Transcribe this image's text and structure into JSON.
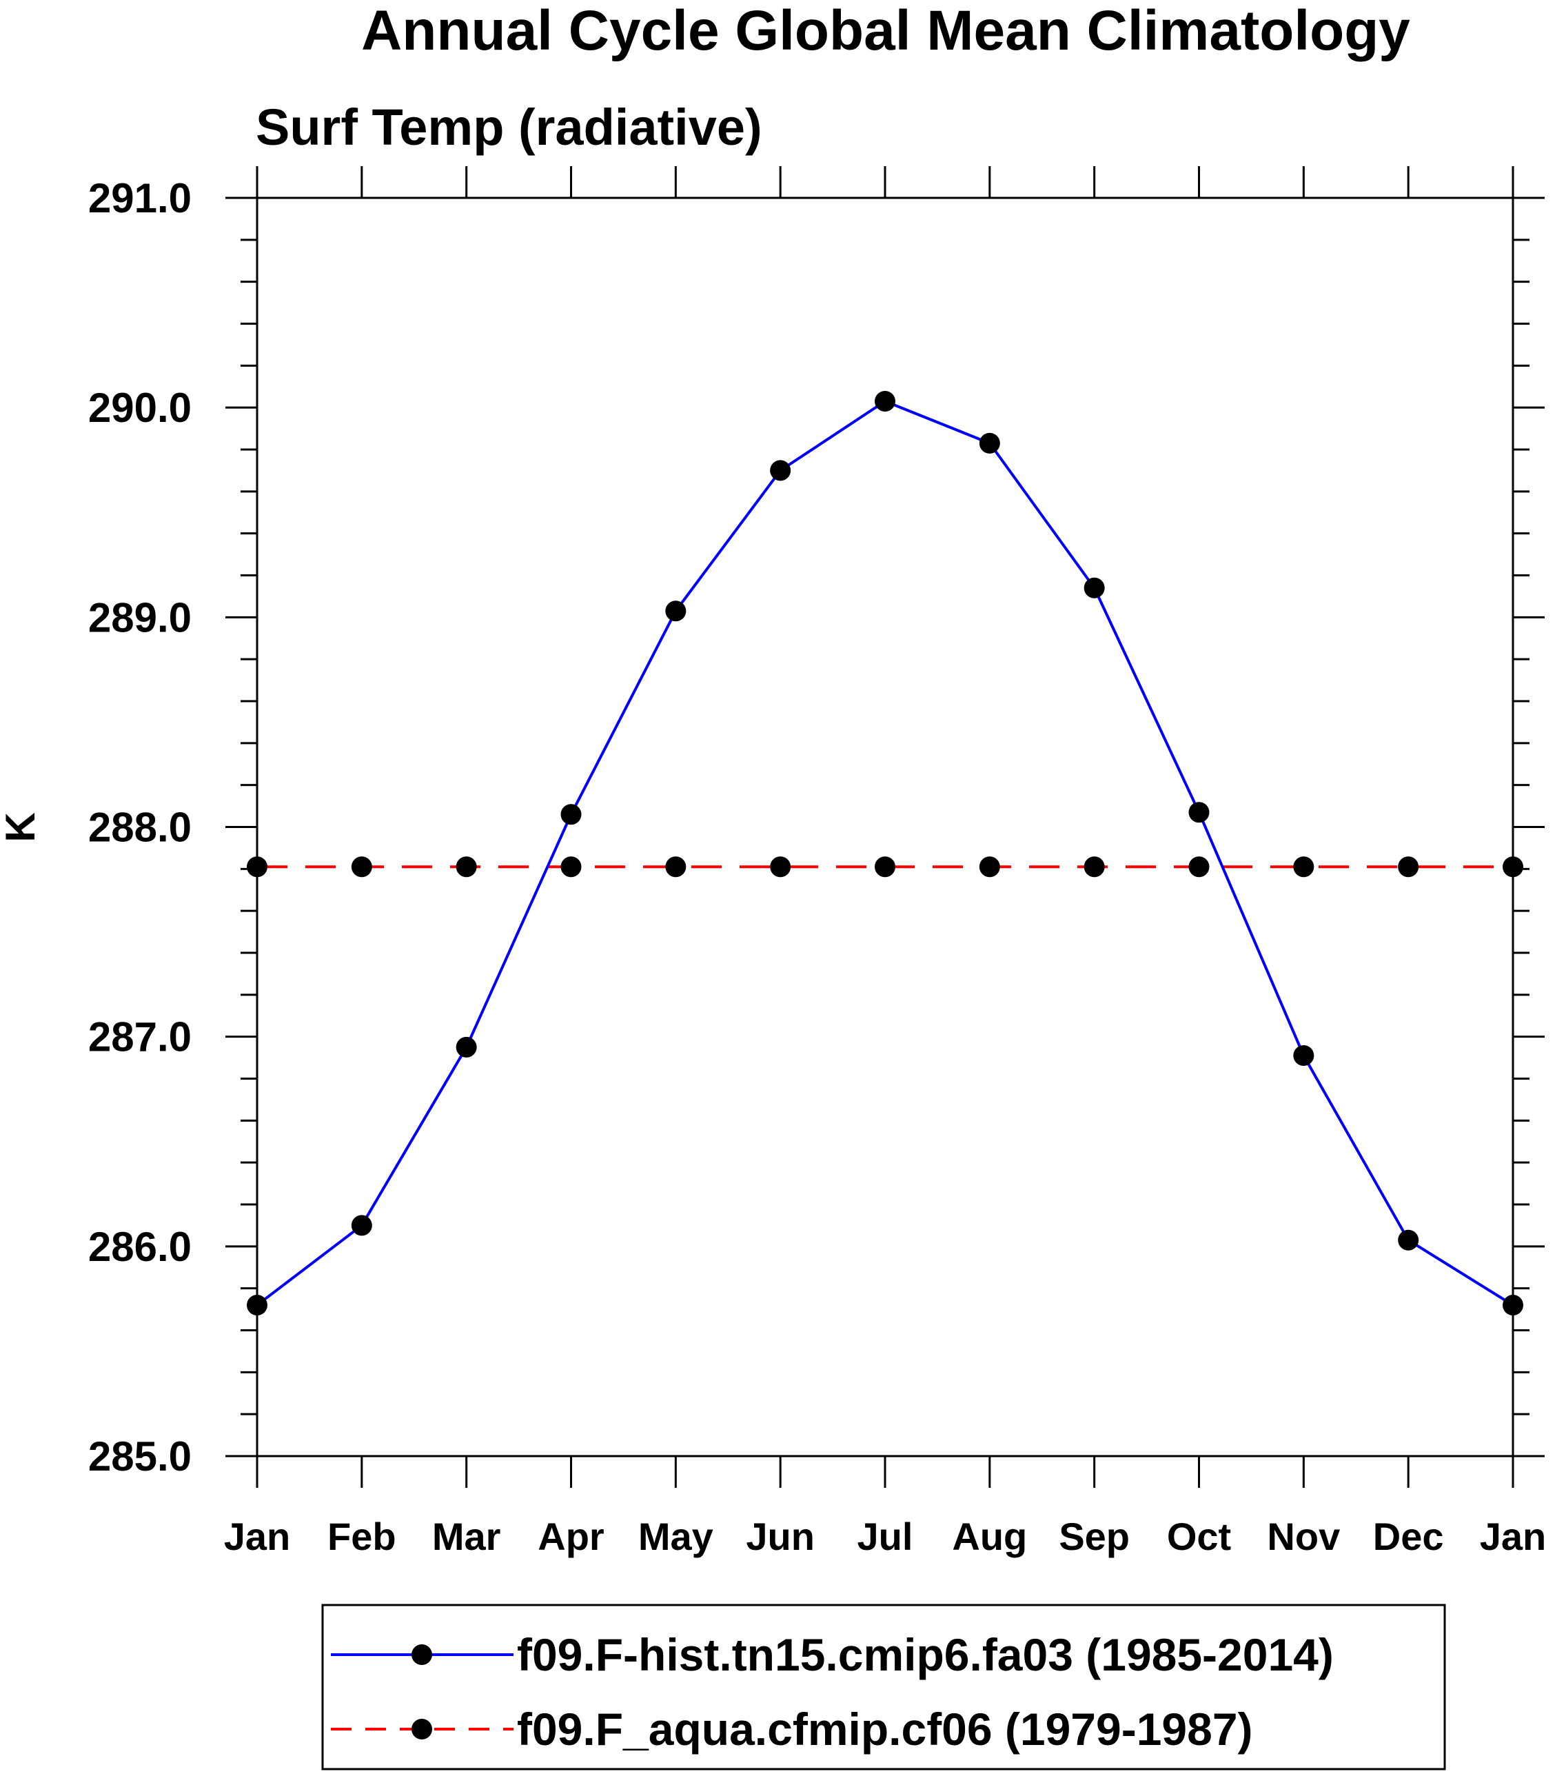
{
  "chart_data": {
    "type": "line",
    "title": "Annual Cycle Global Mean Climatology",
    "subtitle": "Surf Temp (radiative)",
    "xlabel": "",
    "ylabel": "K",
    "categories": [
      "Jan",
      "Feb",
      "Mar",
      "Apr",
      "May",
      "Jun",
      "Jul",
      "Aug",
      "Sep",
      "Oct",
      "Nov",
      "Dec",
      "Jan"
    ],
    "ylim": [
      285.0,
      291.0
    ],
    "yticks": [
      "285.0",
      "286.0",
      "287.0",
      "288.0",
      "289.0",
      "290.0",
      "291.0"
    ],
    "ytick_values": [
      285,
      286,
      287,
      288,
      289,
      290,
      291
    ],
    "grid": false,
    "legend_position": "bottom",
    "series": [
      {
        "name": "f09.F-hist.tn15.cmip6.fa03 (1985-2014)",
        "color": "#0000ff",
        "line_style": "solid",
        "marker": "filled-circle",
        "values": [
          285.72,
          286.1,
          286.95,
          288.06,
          289.03,
          289.7,
          290.03,
          289.83,
          289.14,
          288.07,
          286.91,
          286.03,
          285.72
        ]
      },
      {
        "name": "f09.F_aqua.cfmip.cf06 (1979-1987)",
        "color": "#ff0000",
        "line_style": "dashed",
        "marker": "filled-circle",
        "values": [
          287.81,
          287.81,
          287.81,
          287.81,
          287.81,
          287.81,
          287.81,
          287.81,
          287.81,
          287.81,
          287.81,
          287.81,
          287.81
        ]
      }
    ]
  }
}
